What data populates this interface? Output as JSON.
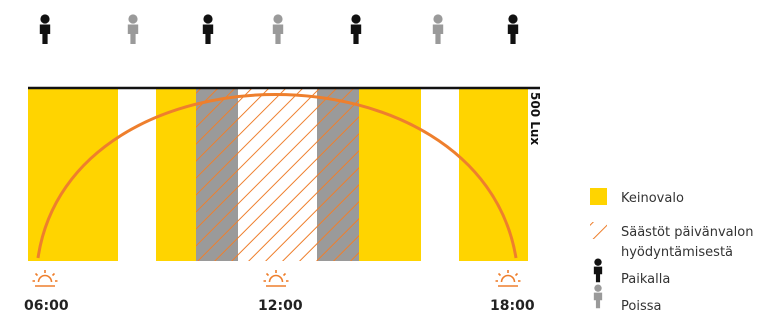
{
  "colors": {
    "artificial_light": "#FFD400",
    "present_overlap": "#9A9A9A",
    "daylight_curve": "#EE7F2D",
    "person_present": "#111111",
    "person_absent": "#9A9A9A"
  },
  "lux_threshold": {
    "label": "500 Lux"
  },
  "people_row": [
    "present",
    "absent",
    "present",
    "absent",
    "present",
    "absent",
    "present"
  ],
  "time_labels": {
    "start": "06:00",
    "noon": "12:00",
    "end": "18:00"
  },
  "icons": {
    "sun": "sun-icon",
    "person": "person-icon",
    "hatch": "hatch-pattern"
  },
  "legend": {
    "artificial_light": "Keinovalo",
    "savings_line1": "Säästöt päivänvalon",
    "savings_line2": "hyödyntämisestä",
    "present": "Paikalla",
    "absent": "Poissa"
  }
}
